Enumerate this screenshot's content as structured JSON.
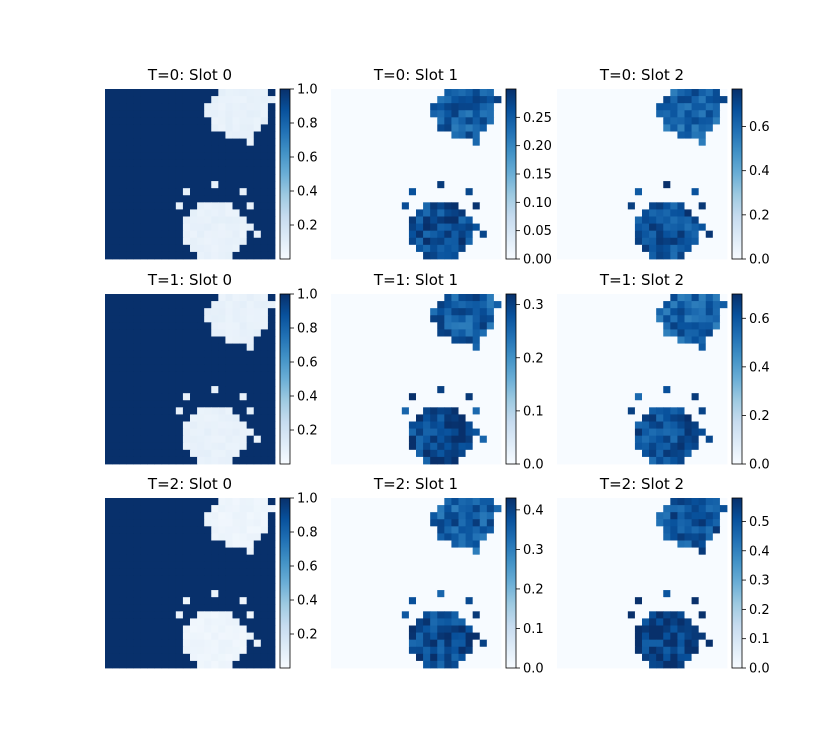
{
  "figure": {
    "background": "#ffffff"
  },
  "chart_data": [
    {
      "type": "heatmap",
      "title": "T=0: Slot 0",
      "colormap": "Blues",
      "vmin": 0.0,
      "vmax": 1.0,
      "background_value": 1.0,
      "object_level": 0.06,
      "colorbar_ticks": [
        "0.2",
        "0.4",
        "0.6",
        "0.8",
        "1.0"
      ]
    },
    {
      "type": "heatmap",
      "title": "T=0: Slot 1",
      "colormap": "Blues",
      "vmin": 0.0,
      "vmax": 0.3,
      "background_value": 0.0,
      "object_level": 0.27,
      "colorbar_ticks": [
        "0.00",
        "0.05",
        "0.10",
        "0.15",
        "0.20",
        "0.25"
      ]
    },
    {
      "type": "heatmap",
      "title": "T=0: Slot 2",
      "colormap": "Blues",
      "vmin": 0.0,
      "vmax": 0.77,
      "background_value": 0.0,
      "object_level": 0.68,
      "colorbar_ticks": [
        "0.0",
        "0.2",
        "0.4",
        "0.6"
      ]
    },
    {
      "type": "heatmap",
      "title": "T=1: Slot 0",
      "colormap": "Blues",
      "vmin": 0.0,
      "vmax": 1.0,
      "background_value": 1.0,
      "object_level": 0.06,
      "colorbar_ticks": [
        "0.2",
        "0.4",
        "0.6",
        "0.8",
        "1.0"
      ]
    },
    {
      "type": "heatmap",
      "title": "T=1: Slot 1",
      "colormap": "Blues",
      "vmin": 0.0,
      "vmax": 0.32,
      "background_value": 0.0,
      "object_level": 0.29,
      "colorbar_ticks": [
        "0.0",
        "0.1",
        "0.2",
        "0.3"
      ]
    },
    {
      "type": "heatmap",
      "title": "T=1: Slot 2",
      "colormap": "Blues",
      "vmin": 0.0,
      "vmax": 0.7,
      "background_value": 0.0,
      "object_level": 0.62,
      "colorbar_ticks": [
        "0.0",
        "0.2",
        "0.4",
        "0.6"
      ]
    },
    {
      "type": "heatmap",
      "title": "T=2: Slot 0",
      "colormap": "Blues",
      "vmin": 0.0,
      "vmax": 1.0,
      "background_value": 1.0,
      "object_level": 0.03,
      "colorbar_ticks": [
        "0.2",
        "0.4",
        "0.6",
        "0.8",
        "1.0"
      ]
    },
    {
      "type": "heatmap",
      "title": "T=2: Slot 1",
      "colormap": "Blues",
      "vmin": 0.0,
      "vmax": 0.43,
      "background_value": 0.0,
      "object_level": 0.39,
      "colorbar_ticks": [
        "0.0",
        "0.1",
        "0.2",
        "0.3",
        "0.4"
      ]
    },
    {
      "type": "heatmap",
      "title": "T=2: Slot 2",
      "colormap": "Blues",
      "vmin": 0.0,
      "vmax": 0.58,
      "background_value": 0.0,
      "object_level": 0.55,
      "colorbar_ticks": [
        "0.0",
        "0.1",
        "0.2",
        "0.3",
        "0.4",
        "0.5"
      ]
    }
  ]
}
